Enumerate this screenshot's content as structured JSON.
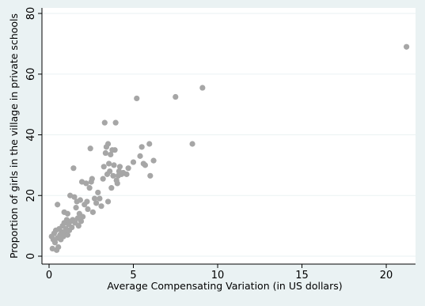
{
  "chart_data": {
    "type": "scatter",
    "title": "",
    "xlabel": "Average Compensating Variation (in US dollars)",
    "ylabel": "Proportion of girls in the village in private schools",
    "xlim": [
      0,
      21.5
    ],
    "ylim": [
      0,
      80
    ],
    "xticks": [
      0,
      5,
      10,
      15,
      20
    ],
    "yticks": [
      0,
      20,
      40,
      60,
      80
    ],
    "grid": "horizontal",
    "legend": "none",
    "colors": {
      "background": "#eaf2f3",
      "plot_area": "#ffffff",
      "marker": "#a6a6a6",
      "grid": "#eaf2f3"
    },
    "series": [
      {
        "points": [
          [
            0.15,
            6.5
          ],
          [
            0.2,
            2.5
          ],
          [
            0.25,
            5.5
          ],
          [
            0.3,
            7.5
          ],
          [
            0.35,
            4.5
          ],
          [
            0.4,
            8.5
          ],
          [
            0.45,
            2.0
          ],
          [
            0.5,
            6.0
          ],
          [
            0.5,
            17.0
          ],
          [
            0.55,
            3.0
          ],
          [
            0.6,
            9.0
          ],
          [
            0.65,
            7.0
          ],
          [
            0.7,
            5.5
          ],
          [
            0.75,
            8.0
          ],
          [
            0.8,
            10.0
          ],
          [
            0.85,
            6.5
          ],
          [
            0.9,
            14.5
          ],
          [
            0.9,
            11.0
          ],
          [
            0.95,
            7.5
          ],
          [
            1.0,
            9.0
          ],
          [
            1.05,
            12.0
          ],
          [
            1.1,
            14.0
          ],
          [
            1.1,
            7.0
          ],
          [
            1.15,
            10.5
          ],
          [
            1.2,
            8.5
          ],
          [
            1.25,
            20.0
          ],
          [
            1.3,
            11.5
          ],
          [
            1.35,
            9.5
          ],
          [
            1.4,
            12.0
          ],
          [
            1.45,
            29.0
          ],
          [
            1.5,
            19.5
          ],
          [
            1.55,
            11.0
          ],
          [
            1.6,
            16.0
          ],
          [
            1.65,
            18.0
          ],
          [
            1.7,
            12.5
          ],
          [
            1.75,
            10.0
          ],
          [
            1.8,
            14.0
          ],
          [
            1.85,
            18.5
          ],
          [
            1.9,
            11.5
          ],
          [
            1.95,
            24.5
          ],
          [
            2.0,
            13.0
          ],
          [
            2.1,
            17.0
          ],
          [
            2.2,
            24.0
          ],
          [
            2.25,
            18.0
          ],
          [
            2.3,
            15.5
          ],
          [
            2.4,
            22.5
          ],
          [
            2.45,
            35.5
          ],
          [
            2.5,
            24.5
          ],
          [
            2.55,
            25.5
          ],
          [
            2.6,
            14.5
          ],
          [
            2.7,
            19.0
          ],
          [
            2.8,
            17.5
          ],
          [
            2.9,
            21.0
          ],
          [
            3.0,
            19.0
          ],
          [
            3.1,
            16.5
          ],
          [
            3.2,
            25.5
          ],
          [
            3.25,
            29.5
          ],
          [
            3.3,
            44.0
          ],
          [
            3.35,
            34.0
          ],
          [
            3.4,
            36.0
          ],
          [
            3.45,
            27.0
          ],
          [
            3.5,
            37.0
          ],
          [
            3.5,
            18.0
          ],
          [
            3.55,
            30.5
          ],
          [
            3.6,
            28.0
          ],
          [
            3.65,
            33.5
          ],
          [
            3.7,
            22.5
          ],
          [
            3.75,
            35.0
          ],
          [
            3.8,
            26.5
          ],
          [
            3.85,
            30.0
          ],
          [
            3.9,
            35.0
          ],
          [
            3.95,
            44.0
          ],
          [
            4.0,
            25.0
          ],
          [
            4.05,
            24.0
          ],
          [
            4.1,
            26.5
          ],
          [
            4.15,
            28.0
          ],
          [
            4.2,
            29.5
          ],
          [
            4.3,
            27.0
          ],
          [
            4.4,
            27.5
          ],
          [
            4.6,
            27.0
          ],
          [
            4.7,
            29.0
          ],
          [
            5.0,
            31.0
          ],
          [
            5.2,
            52.0
          ],
          [
            5.4,
            33.0
          ],
          [
            5.5,
            36.0
          ],
          [
            5.6,
            30.5
          ],
          [
            5.7,
            30.0
          ],
          [
            5.95,
            37.0
          ],
          [
            6.0,
            26.5
          ],
          [
            6.2,
            31.5
          ],
          [
            7.5,
            52.5
          ],
          [
            8.5,
            37.0
          ],
          [
            9.1,
            55.5
          ],
          [
            21.2,
            69.0
          ]
        ]
      }
    ]
  }
}
